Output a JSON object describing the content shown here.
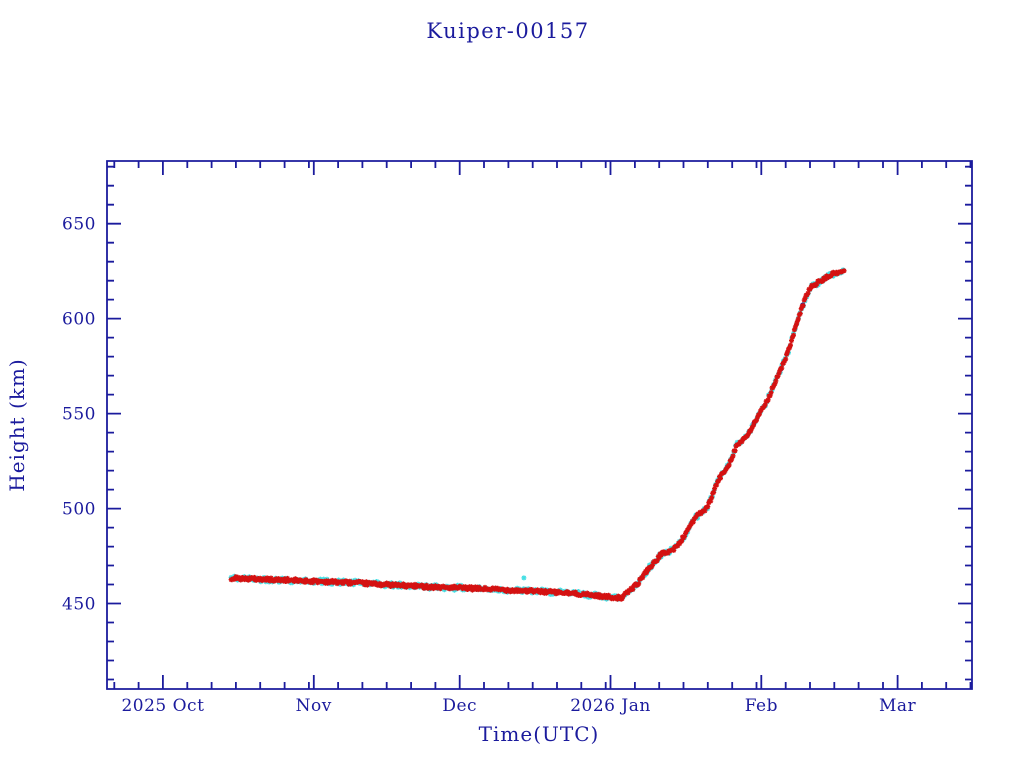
{
  "chart_data": {
    "type": "scatter",
    "title": "Kuiper-00157",
    "xlabel": "Time(UTC)",
    "ylabel": "Height (km)",
    "x_epoch_day0": "2025-10-01",
    "xlim_days": [
      -11.5,
      166.3
    ],
    "ylim": [
      405,
      683
    ],
    "y_major_ticks": [
      450,
      500,
      550,
      600,
      650
    ],
    "y_minor_step_km": 10,
    "x_minor_step_days": 5,
    "x_months": [
      {
        "label": "2025 Oct",
        "day": 0
      },
      {
        "label": "Nov",
        "day": 31
      },
      {
        "label": "Dec",
        "day": 61
      },
      {
        "label": "2026 Jan",
        "day": 92
      },
      {
        "label": "Feb",
        "day": 123
      },
      {
        "label": "Mar",
        "day": 151
      }
    ],
    "month_boundaries_days": [
      -30,
      0,
      31,
      61,
      92,
      123,
      151,
      181
    ],
    "grid": false,
    "legend": false,
    "colors": {
      "axis": "#1b1b9d",
      "tracked": "#d41111",
      "predicted": "#45dfe4",
      "overlap": "#232a88",
      "background": "#ffffff"
    },
    "series": [
      {
        "name": "predicted-height",
        "color_key": "predicted",
        "sample_step_days": 0.34,
        "noise_km": 1.4
      },
      {
        "name": "overlap-dark-points",
        "color_key": "overlap",
        "sample_days": [
          99.5,
          104,
          110.5,
          116,
          121.5,
          127,
          131.5,
          136.5
        ]
      },
      {
        "name": "tracked-height",
        "color_key": "tracked",
        "sample_step_days": 0.2,
        "noise_km": 0.9
      }
    ],
    "predicted_outliers_day_heightkm": [
      [
        74.2,
        463.5
      ]
    ],
    "waypoints_day_heightkm": [
      [
        14,
        463.4
      ],
      [
        28,
        462.1
      ],
      [
        38,
        461.1
      ],
      [
        49,
        459.5
      ],
      [
        59,
        458.4
      ],
      [
        69,
        457.4
      ],
      [
        79.5,
        456.1
      ],
      [
        86,
        455.0
      ],
      [
        90,
        453.9
      ],
      [
        93,
        453.2
      ],
      [
        94.3,
        452.9
      ],
      [
        95.9,
        456.8
      ],
      [
        97.6,
        460.5
      ],
      [
        99,
        465.8
      ],
      [
        100,
        469
      ],
      [
        101.1,
        471.6
      ],
      [
        102.1,
        475.3
      ],
      [
        103.1,
        476.8
      ],
      [
        104.6,
        477.9
      ],
      [
        105.8,
        480.5
      ],
      [
        107.2,
        485.8
      ],
      [
        108.3,
        491
      ],
      [
        109.3,
        494.7
      ],
      [
        110.3,
        497.4
      ],
      [
        111.8,
        500
      ],
      [
        112.8,
        505.8
      ],
      [
        113.4,
        510.5
      ],
      [
        114.4,
        516
      ],
      [
        115.5,
        520
      ],
      [
        116.5,
        524.2
      ],
      [
        117.1,
        527.9
      ],
      [
        117.9,
        533.2
      ],
      [
        119.6,
        536.8
      ],
      [
        120.6,
        540.1
      ],
      [
        121.6,
        545.4
      ],
      [
        122.6,
        549.6
      ],
      [
        123.7,
        554.3
      ],
      [
        124.7,
        559.6
      ],
      [
        125.3,
        563.8
      ],
      [
        126.3,
        569
      ],
      [
        127.2,
        574.4
      ],
      [
        128,
        579.5
      ],
      [
        128.8,
        584.7
      ],
      [
        129.4,
        590
      ],
      [
        130.2,
        596.8
      ],
      [
        130.9,
        602
      ],
      [
        131.7,
        608.4
      ],
      [
        132.5,
        613.7
      ],
      [
        133.3,
        616.8
      ],
      [
        134.6,
        618.9
      ],
      [
        136,
        621
      ],
      [
        137.4,
        623.2
      ],
      [
        138.7,
        624.2
      ],
      [
        140.1,
        625.3
      ]
    ],
    "seed": 42
  }
}
